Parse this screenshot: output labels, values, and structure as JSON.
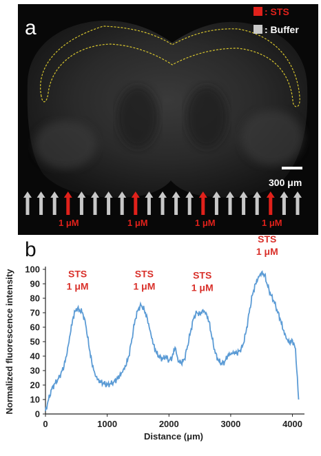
{
  "panel_a": {
    "letter": "a",
    "legend": [
      {
        "label": ": STS",
        "color": "#e0211b"
      },
      {
        "label": ": Buffer",
        "color": "#c8c8c8"
      }
    ],
    "scale_bar": "300 μm",
    "arrow_pattern": [
      "buffer",
      "buffer",
      "buffer",
      "sts",
      "buffer",
      "buffer",
      "buffer",
      "buffer",
      "sts",
      "buffer",
      "buffer",
      "buffer",
      "buffer",
      "sts",
      "buffer",
      "buffer",
      "buffer",
      "buffer",
      "sts",
      "buffer",
      "buffer"
    ],
    "concentration_labels": [
      "1 μM",
      "1 μM",
      "1 μM",
      "1 μM"
    ]
  },
  "panel_b": {
    "letter": "b",
    "annotations": [
      {
        "line1": "STS",
        "line2": "1 μM",
        "x": 520,
        "y": 87
      },
      {
        "line1": "STS",
        "line2": "1 μM",
        "x": 1600,
        "y": 87
      },
      {
        "line1": "STS",
        "line2": "1 μM",
        "x": 2540,
        "y": 86
      },
      {
        "line1": "STS",
        "line2": "1 μM",
        "x": 3590,
        "y": 111
      }
    ]
  },
  "chart_data": {
    "type": "line",
    "xlabel": "Distance (μm)",
    "ylabel": "Normalized fluorescence intensity",
    "xlim": [
      0,
      4150
    ],
    "ylim": [
      0,
      100
    ],
    "xticks": [
      0,
      1000,
      2000,
      3000,
      4000
    ],
    "yticks": [
      0,
      10,
      20,
      30,
      40,
      50,
      60,
      70,
      80,
      90,
      100
    ],
    "series": [
      {
        "color": "#5b9bd5",
        "x": [
          0,
          50,
          100,
          150,
          200,
          250,
          300,
          350,
          400,
          450,
          500,
          550,
          600,
          650,
          700,
          750,
          800,
          850,
          900,
          950,
          1000,
          1050,
          1100,
          1150,
          1200,
          1250,
          1300,
          1350,
          1400,
          1450,
          1500,
          1550,
          1600,
          1650,
          1700,
          1750,
          1800,
          1850,
          1900,
          1950,
          2000,
          2050,
          2100,
          2150,
          2200,
          2250,
          2300,
          2350,
          2400,
          2450,
          2500,
          2550,
          2600,
          2650,
          2700,
          2750,
          2800,
          2850,
          2900,
          2950,
          3000,
          3050,
          3100,
          3150,
          3200,
          3250,
          3300,
          3350,
          3400,
          3450,
          3500,
          3550,
          3600,
          3650,
          3700,
          3750,
          3800,
          3850,
          3900,
          3950,
          4000,
          4050,
          4100
        ],
        "y": [
          2,
          10,
          17,
          21,
          24,
          28,
          33,
          42,
          55,
          67,
          73,
          72,
          70,
          62,
          48,
          36,
          28,
          24,
          22,
          21,
          20,
          21,
          22,
          24,
          26,
          29,
          33,
          40,
          52,
          65,
          72,
          75,
          72,
          66,
          57,
          48,
          42,
          39,
          38,
          40,
          37,
          39,
          46,
          36,
          35,
          38,
          47,
          57,
          66,
          70,
          69,
          72,
          70,
          64,
          52,
          42,
          37,
          35,
          36,
          40,
          41,
          42,
          42,
          44,
          48,
          57,
          70,
          82,
          90,
          95,
          98,
          96,
          88,
          82,
          78,
          72,
          66,
          58,
          52,
          49,
          51,
          45,
          10
        ]
      }
    ]
  }
}
